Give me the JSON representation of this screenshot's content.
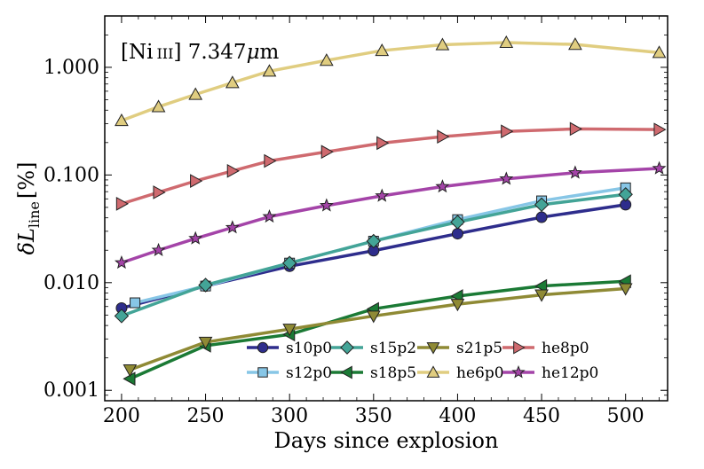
{
  "chart_data": {
    "type": "line",
    "title": "",
    "annotation": "[Ni III] 7.347μm",
    "xlabel": "Days since explosion",
    "ylabel": "δL_line [%]",
    "ylabel_parts": {
      "delta": "δ",
      "L": "L",
      "sub": "line",
      "unit": "[%]"
    },
    "annotation_parts": {
      "species": "[Ni",
      "ion": "III",
      "wave": "] 7.347",
      "mu": "μ",
      "unit": "m"
    },
    "xlim": [
      190,
      525
    ],
    "ylim": [
      0.0008,
      3.0
    ],
    "yscale": "log",
    "xticks": [
      200,
      250,
      300,
      350,
      400,
      450,
      500
    ],
    "yticks": [
      0.001,
      0.01,
      0.1,
      1.0
    ],
    "ytick_labels": [
      "0.001",
      "0.010",
      "0.100",
      "1.000"
    ],
    "legend_position": "lower-right",
    "series": [
      {
        "name": "s10p0",
        "color": "#2e2d8c",
        "marker": "circle",
        "x": [
          200,
          250,
          300,
          350,
          400,
          450,
          500
        ],
        "y": [
          0.0058,
          0.0093,
          0.0142,
          0.0198,
          0.0285,
          0.0405,
          0.053
        ]
      },
      {
        "name": "s12p0",
        "color": "#87c6e6",
        "marker": "square",
        "x": [
          208,
          250,
          300,
          350,
          400,
          450,
          500
        ],
        "y": [
          0.0065,
          0.0093,
          0.0152,
          0.0243,
          0.0385,
          0.0575,
          0.076
        ]
      },
      {
        "name": "s15p2",
        "color": "#43a497",
        "marker": "diamond",
        "x": [
          200,
          250,
          300,
          350,
          400,
          450,
          500
        ],
        "y": [
          0.0049,
          0.0095,
          0.0152,
          0.0243,
          0.0365,
          0.053,
          0.066
        ]
      },
      {
        "name": "s18p5",
        "color": "#1b7a35",
        "marker": "triangle-left",
        "x": [
          205,
          250,
          300,
          350,
          400,
          450,
          500
        ],
        "y": [
          0.00128,
          0.0026,
          0.0033,
          0.0057,
          0.0075,
          0.0093,
          0.0103
        ]
      },
      {
        "name": "s21p5",
        "color": "#8f8a35",
        "marker": "triangle-down",
        "x": [
          205,
          250,
          300,
          350,
          400,
          450,
          500
        ],
        "y": [
          0.00155,
          0.0028,
          0.0037,
          0.0049,
          0.0063,
          0.0077,
          0.0088
        ]
      },
      {
        "name": "he6p0",
        "color": "#e0cd80",
        "marker": "triangle-up",
        "x": [
          200,
          222,
          244,
          266,
          288,
          322,
          355,
          391,
          429,
          470,
          520
        ],
        "y": [
          0.32,
          0.43,
          0.56,
          0.72,
          0.92,
          1.16,
          1.43,
          1.62,
          1.7,
          1.63,
          1.37
        ]
      },
      {
        "name": "he8p0",
        "color": "#cf6a6f",
        "marker": "triangle-right",
        "x": [
          200,
          222,
          244,
          266,
          288,
          322,
          355,
          391,
          429,
          470,
          520
        ],
        "y": [
          0.054,
          0.069,
          0.088,
          0.109,
          0.135,
          0.164,
          0.198,
          0.227,
          0.254,
          0.268,
          0.264
        ]
      },
      {
        "name": "he12p0",
        "color": "#a444a8",
        "marker": "star",
        "x": [
          200,
          222,
          244,
          266,
          288,
          322,
          355,
          391,
          429,
          470,
          520
        ],
        "y": [
          0.0153,
          0.02,
          0.0257,
          0.0325,
          0.041,
          0.052,
          0.064,
          0.078,
          0.092,
          0.105,
          0.115
        ]
      }
    ],
    "legend_layout": [
      [
        "s10p0",
        "s15p2",
        "s21p5",
        "he8p0"
      ],
      [
        "s12p0",
        "s18p5",
        "he6p0",
        "he12p0"
      ]
    ]
  }
}
